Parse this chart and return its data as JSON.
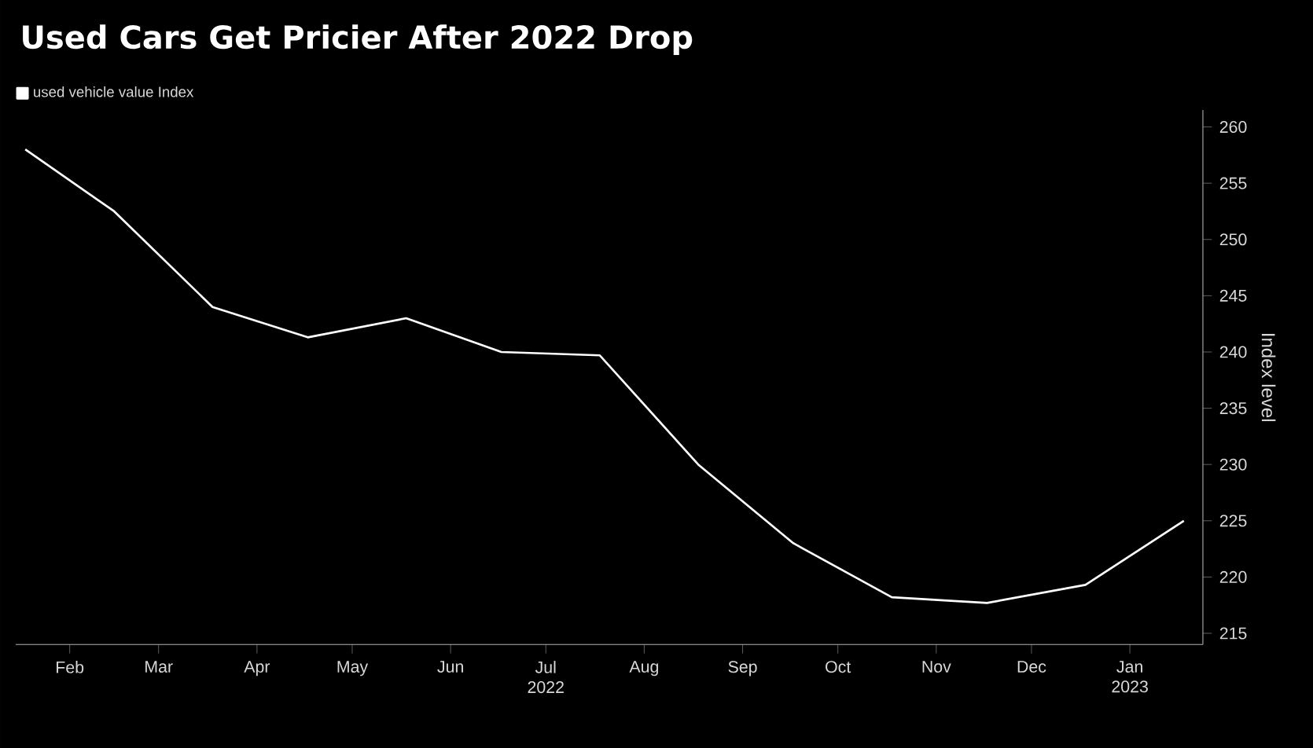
{
  "chart_data": {
    "type": "line",
    "title": "Used Cars Get Pricier After 2022 Drop",
    "ylabel": "Index level",
    "x": [
      "2022-02-01",
      "2022-03-01",
      "2022-04-01",
      "2022-05-01",
      "2022-06-01",
      "2022-07-01",
      "2022-08-01",
      "2022-09-01",
      "2022-10-01",
      "2022-11-01",
      "2022-12-01",
      "2023-01-01",
      "2023-02-01"
    ],
    "series": [
      {
        "name": "used vehicle value Index",
        "color": "#ffffff",
        "values": [
          258,
          252.5,
          244,
          241.3,
          243,
          240,
          239.7,
          230,
          223,
          218.2,
          217.7,
          219.3,
          225
        ]
      }
    ],
    "xlim": [
      "2022-01-29",
      "2023-02-07"
    ],
    "xticks": [
      {
        "value": "2022-02-15",
        "label": "Feb"
      },
      {
        "value": "2022-03-15",
        "label": "Mar"
      },
      {
        "value": "2022-04-15",
        "label": "Apr"
      },
      {
        "value": "2022-05-15",
        "label": "May"
      },
      {
        "value": "2022-06-15",
        "label": "Jun"
      },
      {
        "value": "2022-07-15",
        "label": "Jul 2022"
      },
      {
        "value": "2022-08-15",
        "label": "Aug"
      },
      {
        "value": "2022-09-15",
        "label": "Sep"
      },
      {
        "value": "2022-10-15",
        "label": "Oct"
      },
      {
        "value": "2022-11-15",
        "label": "Nov"
      },
      {
        "value": "2022-12-15",
        "label": "Dec"
      },
      {
        "value": "2023-01-15",
        "label": "Jan 2023"
      }
    ],
    "ylim": [
      214,
      261.5
    ],
    "yticks": [
      215,
      220,
      225,
      230,
      235,
      240,
      245,
      250,
      255,
      260
    ],
    "legend": "top left"
  }
}
